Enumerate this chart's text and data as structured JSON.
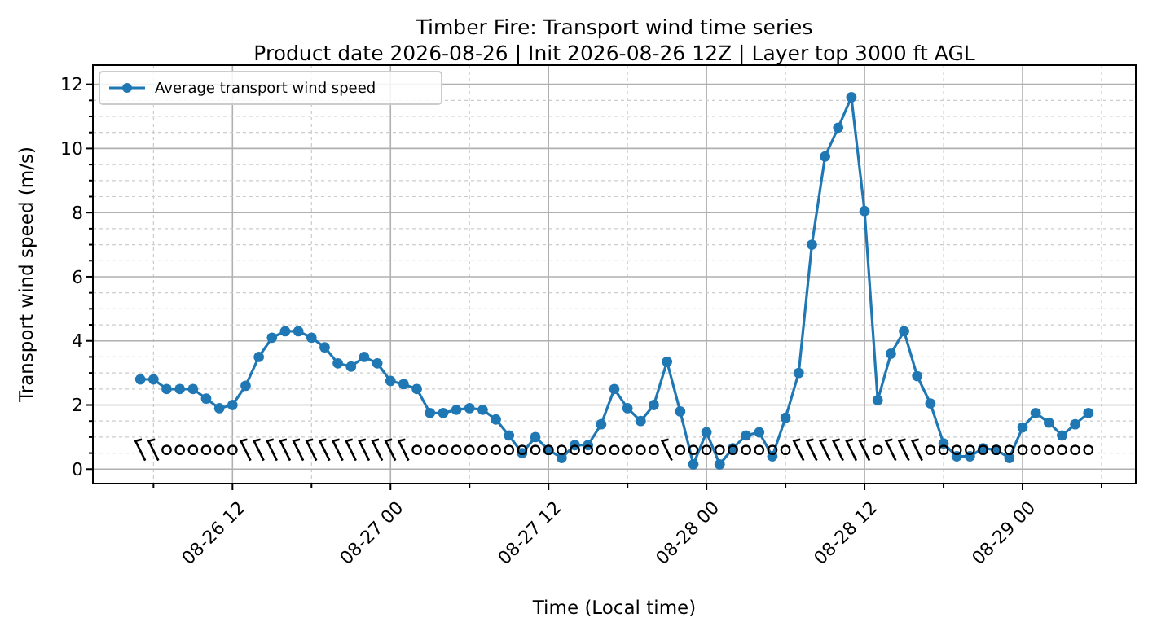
{
  "chart_data": {
    "type": "line",
    "title": "Timber Fire: Transport wind time series",
    "subtitle": "Product date 2026-08-26 | Init 2026-08-26 12Z | Layer top 3000 ft AGL",
    "xlabel": "Time (Local time)",
    "ylabel": "Transport wind speed (m/s)",
    "x": [
      "2026-08-26T05:00",
      "2026-08-26T06:00",
      "2026-08-26T07:00",
      "2026-08-26T08:00",
      "2026-08-26T09:00",
      "2026-08-26T10:00",
      "2026-08-26T11:00",
      "2026-08-26T12:00",
      "2026-08-26T13:00",
      "2026-08-26T14:00",
      "2026-08-26T15:00",
      "2026-08-26T16:00",
      "2026-08-26T17:00",
      "2026-08-26T18:00",
      "2026-08-26T19:00",
      "2026-08-26T20:00",
      "2026-08-26T21:00",
      "2026-08-26T22:00",
      "2026-08-26T23:00",
      "2026-08-27T00:00",
      "2026-08-27T01:00",
      "2026-08-27T02:00",
      "2026-08-27T03:00",
      "2026-08-27T04:00",
      "2026-08-27T05:00",
      "2026-08-27T06:00",
      "2026-08-27T07:00",
      "2026-08-27T08:00",
      "2026-08-27T09:00",
      "2026-08-27T10:00",
      "2026-08-27T11:00",
      "2026-08-27T12:00",
      "2026-08-27T13:00",
      "2026-08-27T14:00",
      "2026-08-27T15:00",
      "2026-08-27T16:00",
      "2026-08-27T17:00",
      "2026-08-27T18:00",
      "2026-08-27T19:00",
      "2026-08-27T20:00",
      "2026-08-27T21:00",
      "2026-08-27T22:00",
      "2026-08-27T23:00",
      "2026-08-28T00:00",
      "2026-08-28T01:00",
      "2026-08-28T02:00",
      "2026-08-28T03:00",
      "2026-08-28T04:00",
      "2026-08-28T05:00",
      "2026-08-28T06:00",
      "2026-08-28T07:00",
      "2026-08-28T08:00",
      "2026-08-28T09:00",
      "2026-08-28T10:00",
      "2026-08-28T11:00",
      "2026-08-28T12:00",
      "2026-08-28T13:00",
      "2026-08-28T14:00",
      "2026-08-28T15:00",
      "2026-08-28T16:00",
      "2026-08-28T17:00",
      "2026-08-28T18:00",
      "2026-08-28T19:00",
      "2026-08-28T20:00",
      "2026-08-28T21:00",
      "2026-08-28T22:00",
      "2026-08-28T23:00",
      "2026-08-29T00:00",
      "2026-08-29T01:00",
      "2026-08-29T02:00",
      "2026-08-29T03:00",
      "2026-08-29T04:00",
      "2026-08-29T05:00"
    ],
    "series": [
      {
        "name": "Average transport wind speed",
        "color": "#1f77b4",
        "marker": "circle",
        "values": [
          2.8,
          2.8,
          2.5,
          2.5,
          2.5,
          2.2,
          1.9,
          2.0,
          2.6,
          3.5,
          4.1,
          4.3,
          4.3,
          4.1,
          3.8,
          3.3,
          3.2,
          3.5,
          3.3,
          2.75,
          2.65,
          2.5,
          1.75,
          1.75,
          1.85,
          1.9,
          1.85,
          1.55,
          1.05,
          0.5,
          1.0,
          0.6,
          0.35,
          0.75,
          0.75,
          1.4,
          2.5,
          1.9,
          1.5,
          2.0,
          3.35,
          1.8,
          0.15,
          1.15,
          0.15,
          0.65,
          1.05,
          1.15,
          0.4,
          1.6,
          3.0,
          7.0,
          9.75,
          10.65,
          11.6,
          8.05,
          2.15,
          3.6,
          4.3,
          2.9,
          2.05,
          0.8,
          0.4,
          0.4,
          0.65,
          0.6,
          0.35,
          1.3,
          1.75,
          1.45,
          1.05,
          1.4,
          1.75
        ]
      },
      {
        "type": "scatter",
        "color": "#000000",
        "values": [
          0.6,
          0.6,
          0.6,
          0.6,
          0.6,
          0.6,
          0.6,
          0.6,
          0.6,
          0.6,
          0.6,
          0.6,
          0.6,
          0.6,
          0.6,
          0.6,
          0.6,
          0.6,
          0.6,
          0.6,
          0.6,
          0.6,
          0.6,
          0.6,
          0.6,
          0.6,
          0.6,
          0.6,
          0.6,
          0.6,
          0.6,
          0.6,
          0.6,
          0.6,
          0.6,
          0.6,
          0.6,
          0.6,
          0.6,
          0.6,
          0.6,
          0.6,
          0.6,
          0.6,
          0.6,
          0.6,
          0.6,
          0.6,
          0.6,
          0.6,
          0.6,
          0.6,
          0.6,
          0.6,
          0.6,
          0.6,
          0.6,
          0.6,
          0.6,
          0.6,
          0.6,
          0.6,
          0.6,
          0.6,
          0.6,
          0.6,
          0.6,
          0.6,
          0.6,
          0.6,
          0.6,
          0.6,
          0.6
        ]
      }
    ],
    "xlim": [
      "2026-08-26T01:24",
      "2026-08-29T08:36"
    ],
    "xticks": [
      {
        "value": "2026-08-26T06:00",
        "label": null
      },
      {
        "value": "2026-08-26T12:00",
        "label": "08-26 12"
      },
      {
        "value": "2026-08-26T18:00",
        "label": null
      },
      {
        "value": "2026-08-27T00:00",
        "label": "08-27 00"
      },
      {
        "value": "2026-08-27T06:00",
        "label": null
      },
      {
        "value": "2026-08-27T12:00",
        "label": "08-27 12"
      },
      {
        "value": "2026-08-27T18:00",
        "label": null
      },
      {
        "value": "2026-08-28T00:00",
        "label": "08-28 00"
      },
      {
        "value": "2026-08-28T06:00",
        "label": null
      },
      {
        "value": "2026-08-28T12:00",
        "label": "08-28 12"
      },
      {
        "value": "2026-08-28T18:00",
        "label": null
      },
      {
        "value": "2026-08-29T00:00",
        "label": "08-29 00"
      },
      {
        "value": "2026-08-29T06:00",
        "label": null
      }
    ],
    "ylim": [
      -0.45,
      12.6
    ],
    "yticks": [
      0,
      {
        "value": 0.5,
        "label": null
      },
      {
        "value": 1,
        "label": null
      },
      {
        "value": 1.5,
        "label": null
      },
      2,
      {
        "value": 2.5,
        "label": null
      },
      {
        "value": 3,
        "label": null
      },
      {
        "value": 3.5,
        "label": null
      },
      4,
      {
        "value": 4.5,
        "label": null
      },
      {
        "value": 5,
        "label": null
      },
      {
        "value": 5.5,
        "label": null
      },
      6,
      {
        "value": 6.5,
        "label": null
      },
      {
        "value": 7,
        "label": null
      },
      {
        "value": 7.5,
        "label": null
      },
      8,
      {
        "value": 8.5,
        "label": null
      },
      {
        "value": 9,
        "label": null
      },
      {
        "value": 9.5,
        "label": null
      },
      10,
      {
        "value": 10.5,
        "label": null
      },
      {
        "value": 11,
        "label": null
      },
      {
        "value": 11.5,
        "label": null
      },
      12
    ],
    "grid": true,
    "legend": "top left",
    "line_style": "solid"
  }
}
